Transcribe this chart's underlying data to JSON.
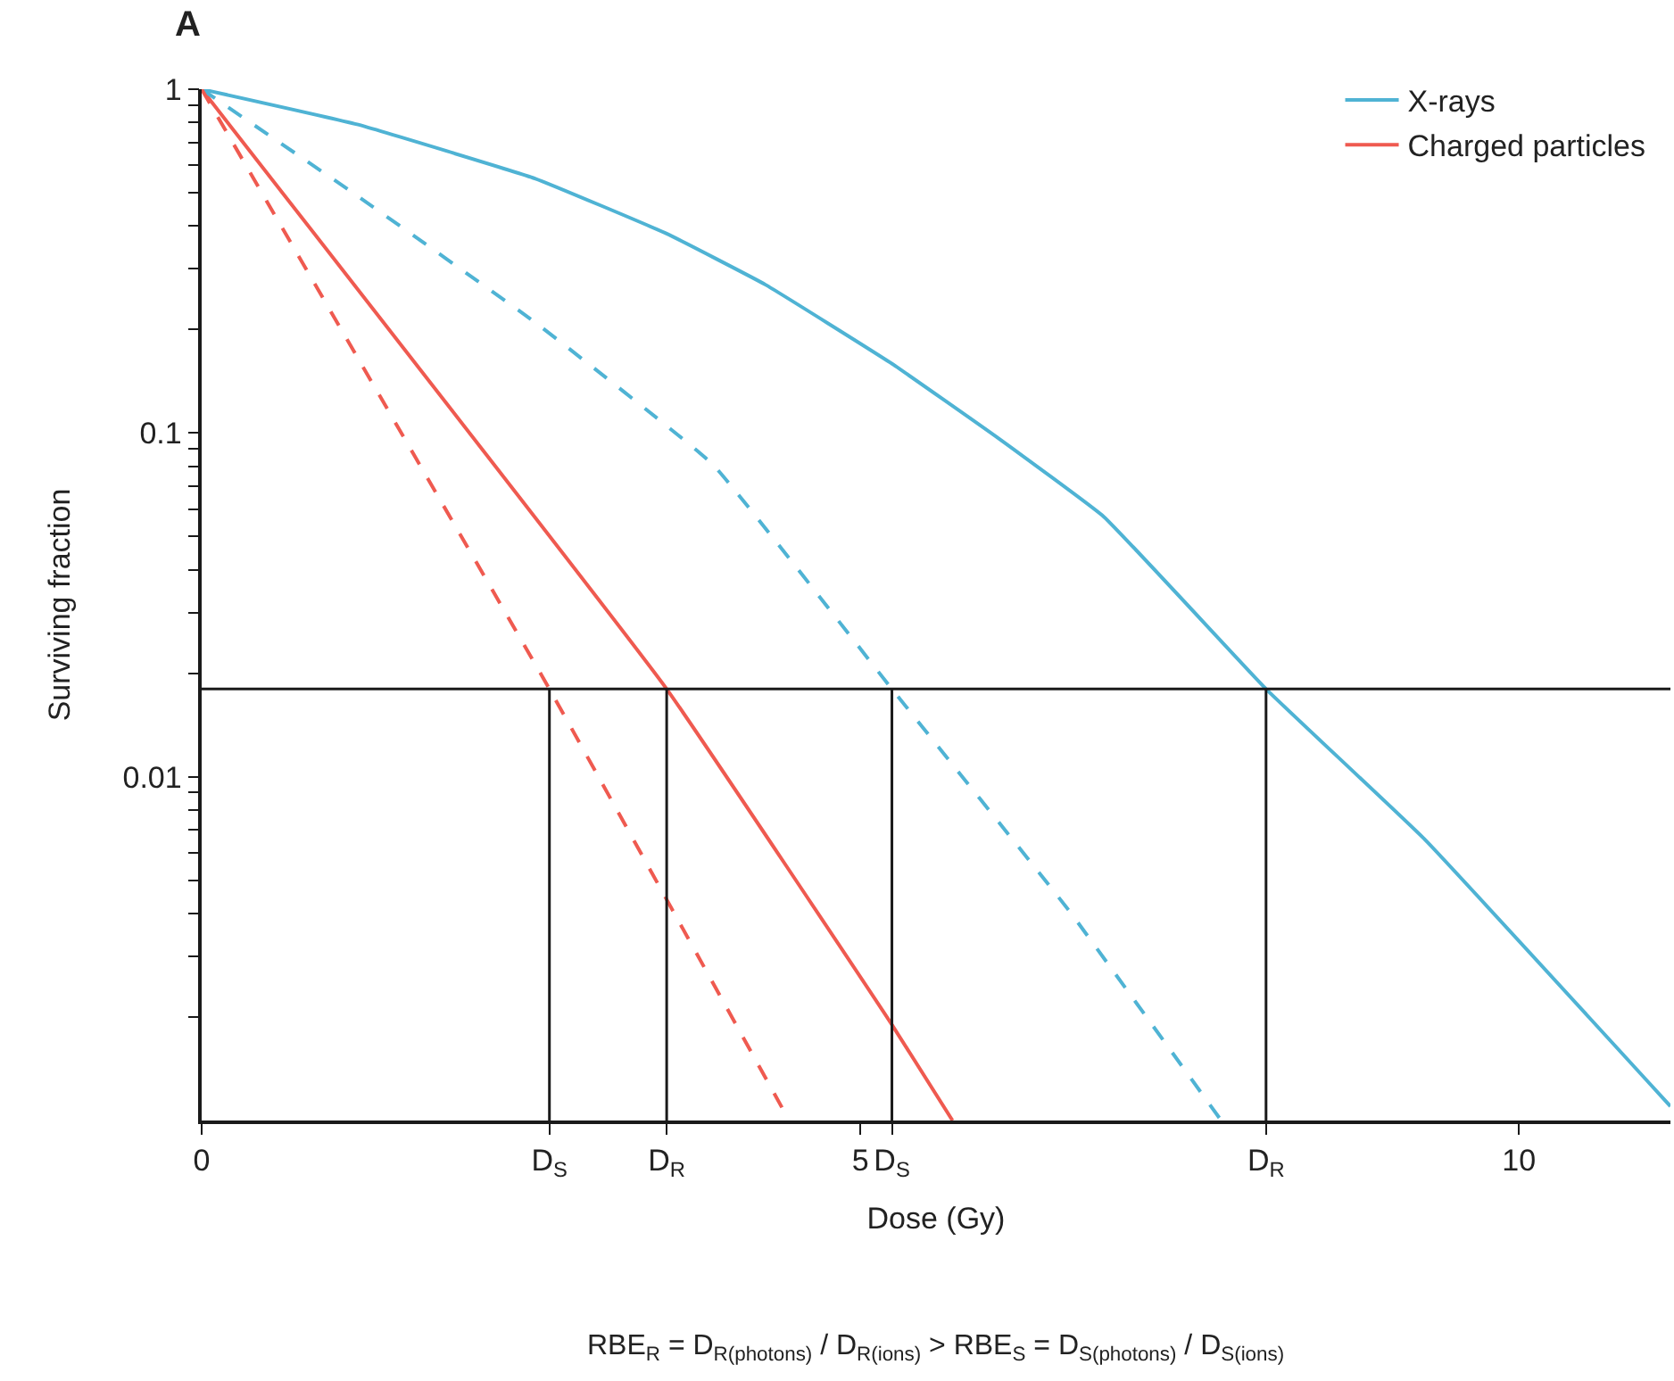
{
  "chart_data": {
    "type": "line",
    "log": "y",
    "legend": "top right",
    "marker": "none",
    "xlabel": "Dose (Gy)",
    "ylabel": "Surviving fraction",
    "annotations": [
      "A",
      "RBE$_{R}$ = D$_{R(photons)}$ / D$_{R(ions)}$ > RBE$_{S}$ = D$_{S(photons)}$ / D$_{S(ions)}$"
    ],
    "xlim": [
      0,
      11.15
    ],
    "ylim": [
      0.001,
      1
    ],
    "xticks": [
      0,
      {
        "value": 2.64,
        "label": "D$_{S}$"
      },
      {
        "value": 3.53,
        "label": "D$_{R}$"
      },
      5,
      {
        "value": 5.24,
        "label": "D$_{S}$"
      },
      {
        "value": 8.08,
        "label": "D$_{R}$"
      },
      10
    ],
    "yticks": [
      {
        "value": 0.002,
        "label": null
      },
      {
        "value": 0.003,
        "label": null
      },
      {
        "value": 0.004,
        "label": null
      },
      {
        "value": 0.005,
        "label": null
      },
      {
        "value": 0.006,
        "label": null
      },
      {
        "value": 0.007,
        "label": null
      },
      {
        "value": 0.008,
        "label": null
      },
      {
        "value": 0.009,
        "label": null
      },
      {
        "value": 0.01,
        "label": "0.01"
      },
      {
        "value": 0.02,
        "label": null
      },
      {
        "value": 0.03,
        "label": null
      },
      {
        "value": 0.04,
        "label": null
      },
      {
        "value": 0.05,
        "label": null
      },
      {
        "value": 0.06,
        "label": null
      },
      {
        "value": 0.07,
        "label": null
      },
      {
        "value": 0.08,
        "label": null
      },
      {
        "value": 0.09,
        "label": null
      },
      {
        "value": 0.1,
        "label": "0.1"
      },
      {
        "value": 0.2,
        "label": null
      },
      {
        "value": 0.3,
        "label": null
      },
      {
        "value": 0.4,
        "label": null
      },
      {
        "value": 0.5,
        "label": null
      },
      {
        "value": 0.6,
        "label": null
      },
      {
        "value": 0.7,
        "label": null
      },
      {
        "value": 0.8,
        "label": null
      },
      {
        "value": 0.9,
        "label": null
      },
      {
        "value": 1,
        "label": "1"
      }
    ],
    "ref_lines": [
      {
        "axis": "y",
        "value": 0.018,
        "color": "#1a1a1a"
      },
      {
        "axis": "x",
        "value": 2.64,
        "color": "#1a1a1a"
      },
      {
        "axis": "x",
        "value": 3.53,
        "color": "#1a1a1a"
      },
      {
        "axis": "x",
        "value": 5.24,
        "color": "#1a1a1a"
      },
      {
        "axis": "x",
        "value": 8.08,
        "color": "#1a1a1a"
      }
    ],
    "series": [
      {
        "name": "X-rays",
        "color": "#4fb3d4",
        "line_style": "solid",
        "x": [
          0,
          1.18,
          2.53,
          3.53,
          4.28,
          5.23,
          6.04,
          6.85,
          8.08,
          9.28,
          11.15
        ],
        "values": [
          1,
          0.79,
          0.55,
          0.38,
          0.27,
          0.16,
          0.097,
          0.057,
          0.018,
          0.0066,
          0.0011
        ]
      },
      {
        "name": "Charged particles",
        "color": "#ef5a50",
        "line_style": "solid",
        "x": [
          0,
          3.53,
          5.24,
          5.7
        ],
        "values": [
          1,
          0.018,
          0.0019,
          0.001
        ]
      },
      {
        "color": "#4fb3d4",
        "line_style": "dashed",
        "x": [
          0,
          1.18,
          2.53,
          3.88,
          5.24,
          6.58,
          7.74
        ],
        "values": [
          1,
          0.49,
          0.21,
          0.081,
          0.018,
          0.0041,
          0.001
        ]
      },
      {
        "color": "#ef5a50",
        "line_style": "dashed",
        "x": [
          0,
          2.64,
          4.46
        ],
        "values": [
          1,
          0.018,
          0.001
        ]
      }
    ]
  }
}
